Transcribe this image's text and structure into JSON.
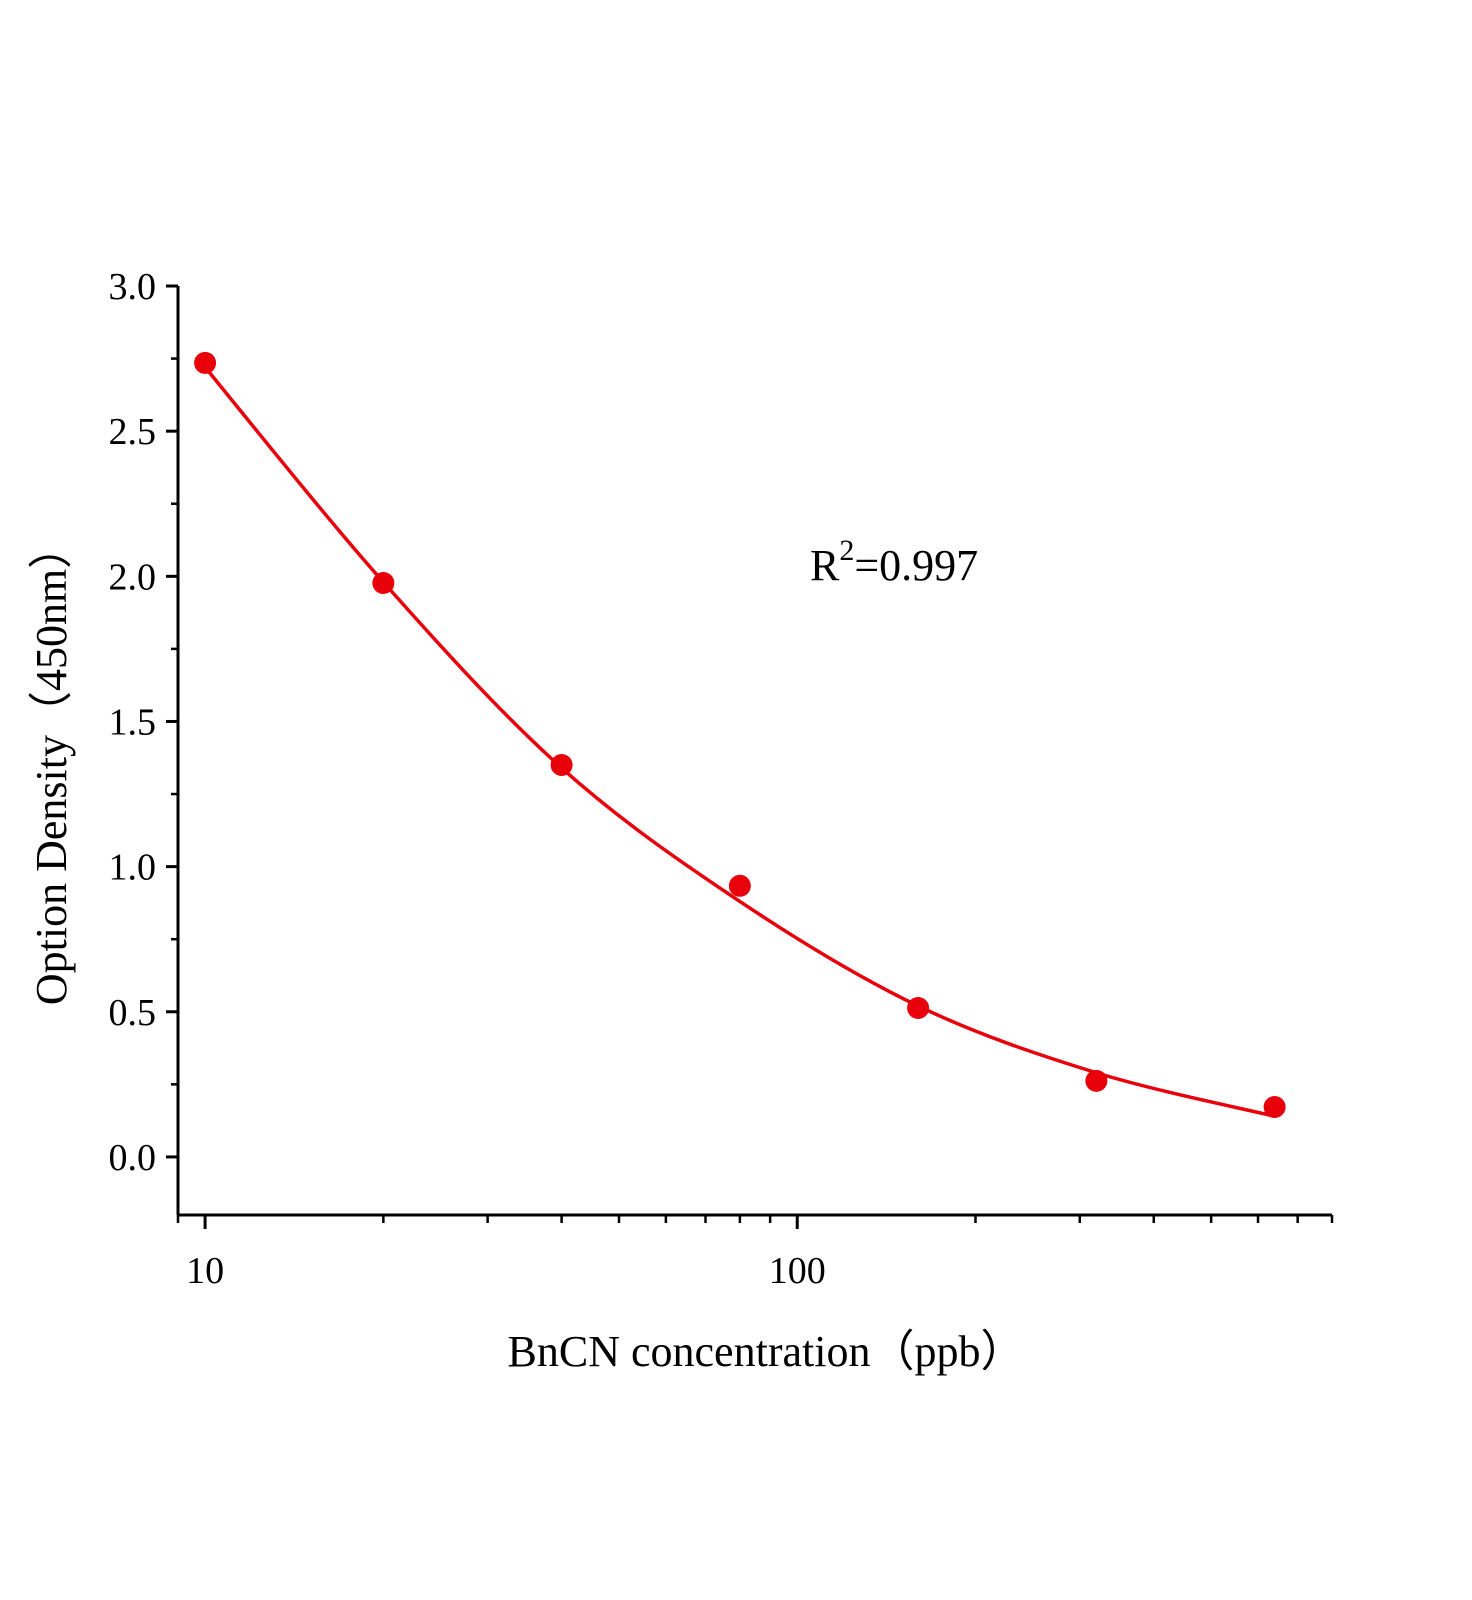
{
  "chart_data": {
    "type": "scatter",
    "title": "",
    "xlabel": "BnCN concentration（ppb）",
    "ylabel": "Option Density（450nm）",
    "xscale": "log",
    "xlim": [
      9,
      800
    ],
    "ylim": [
      -0.2,
      3.0
    ],
    "xticks": [
      10,
      100
    ],
    "xtick_labels": [
      "10",
      "100"
    ],
    "yticks": [
      0.0,
      0.5,
      1.0,
      1.5,
      2.0,
      2.5,
      3.0
    ],
    "ytick_labels": [
      "0.0",
      "0.5",
      "1.0",
      "1.5",
      "2.0",
      "2.5",
      "3.0"
    ],
    "grid": false,
    "points": {
      "x": [
        10,
        20,
        40,
        80,
        160,
        320,
        640
      ],
      "y": [
        2.735,
        1.977,
        1.35,
        0.934,
        0.513,
        0.262,
        0.172
      ]
    },
    "fit_curve": {
      "x": [
        10,
        20,
        40,
        80,
        160,
        320,
        640
      ],
      "y": [
        2.72,
        1.98,
        1.34,
        0.88,
        0.52,
        0.29,
        0.14
      ]
    },
    "annotation": {
      "text_base": "R",
      "text_sup": "2",
      "text_rest": "=0.997"
    },
    "colors": {
      "series": "#e8000b",
      "axis": "#000000"
    }
  }
}
